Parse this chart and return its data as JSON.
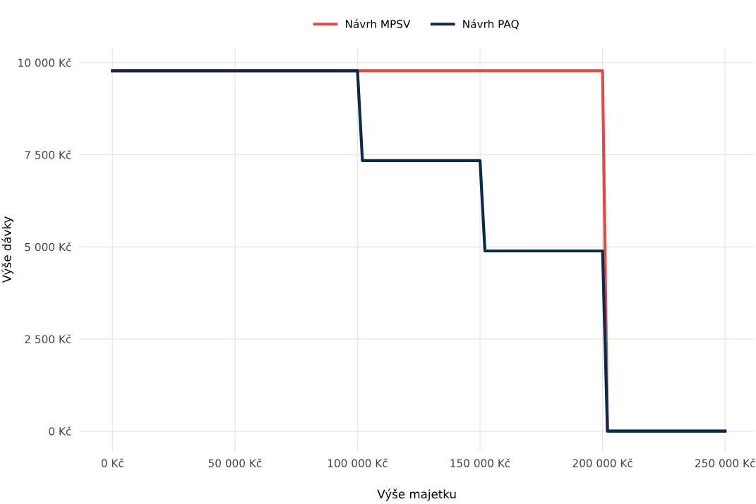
{
  "chart_data": {
    "type": "line",
    "xlabel": "Výše majetku",
    "ylabel": "Výše dávky",
    "series": [
      {
        "name": "Návrh MPSV",
        "color": "#e04a45",
        "x": [
          0,
          200000,
          202000,
          250000
        ],
        "values": [
          9780,
          9780,
          0,
          0
        ]
      },
      {
        "name": "Návrh PAQ",
        "color": "#0b2a4a",
        "x": [
          0,
          100000,
          102000,
          150000,
          152000,
          200000,
          202000,
          250000
        ],
        "values": [
          9780,
          9780,
          7340,
          7340,
          4890,
          4890,
          0,
          0
        ]
      }
    ],
    "xlim": [
      -13500,
      262000
    ],
    "ylim": [
      -540,
      10400
    ],
    "xticks": [
      {
        "value": 0,
        "label": "0 Kč"
      },
      {
        "value": 50000,
        "label": "50 000 Kč"
      },
      {
        "value": 100000,
        "label": "100 000 Kč"
      },
      {
        "value": 150000,
        "label": "150 000 Kč"
      },
      {
        "value": 200000,
        "label": "200 000 Kč"
      },
      {
        "value": 250000,
        "label": "250 000 Kč"
      }
    ],
    "yticks": [
      {
        "value": 0,
        "label": "0 Kč"
      },
      {
        "value": 2500,
        "label": "2 500 Kč"
      },
      {
        "value": 5000,
        "label": "5 000 Kč"
      },
      {
        "value": 7500,
        "label": "7 500 Kč"
      },
      {
        "value": 10000,
        "label": "10 000 Kč"
      }
    ],
    "grid": true,
    "legend": "top",
    "line_style": "solid",
    "marker": "none"
  }
}
